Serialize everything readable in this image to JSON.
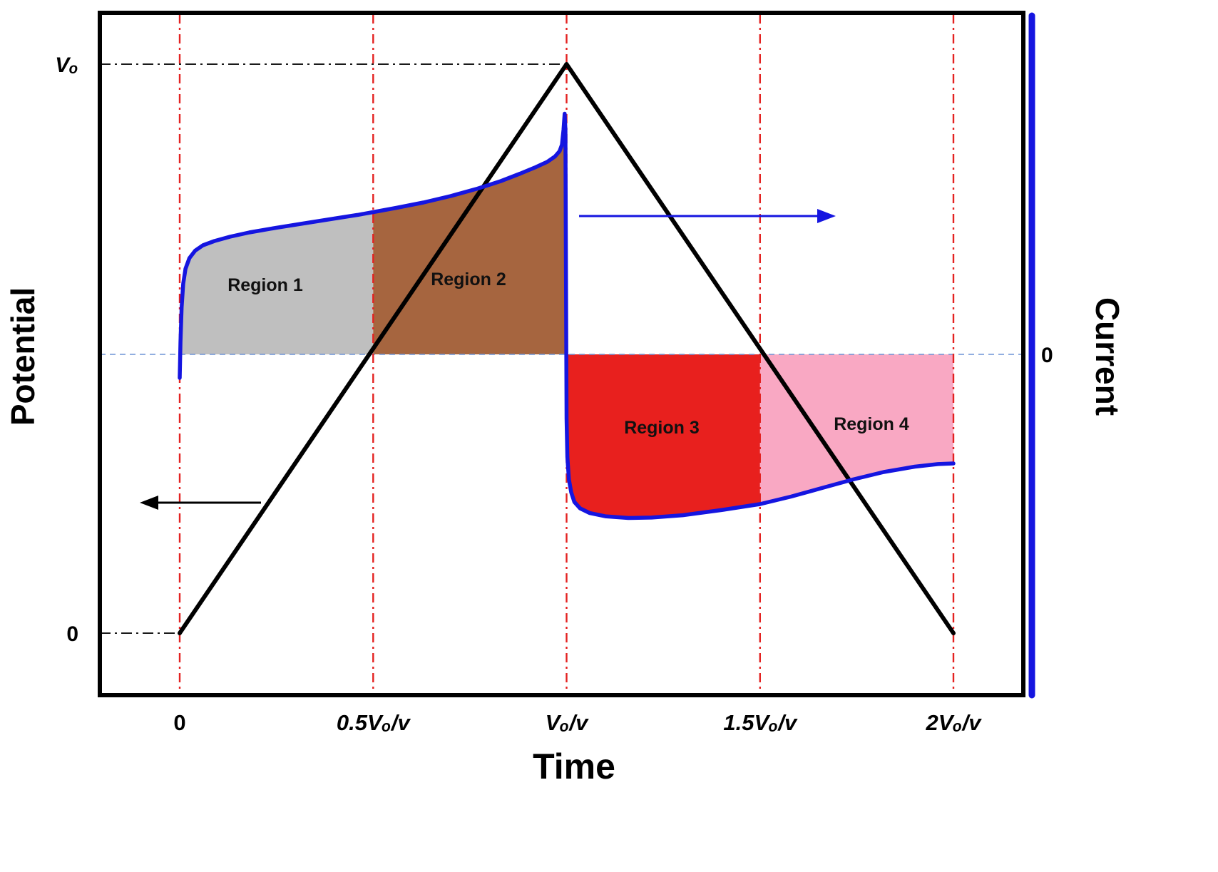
{
  "chart_data": {
    "type": "line",
    "xlabel": "Time",
    "ylabel_left": "Potential",
    "ylabel_right": "Current",
    "x_ticks": [
      {
        "t": 0,
        "label": "0"
      },
      {
        "t": 0.5,
        "label": "0.5Vₒ/v"
      },
      {
        "t": 1,
        "label": "Vₒ/v"
      },
      {
        "t": 1.5,
        "label": "1.5Vₒ/v"
      },
      {
        "t": 2,
        "label": "2Vₒ/v"
      }
    ],
    "left_axis": {
      "range": [
        0,
        1
      ],
      "ticks": [
        {
          "v": 1,
          "label": "Vₒ"
        },
        {
          "v": 0,
          "label": "0"
        }
      ]
    },
    "right_axis": {
      "ticks": [
        {
          "i": 0,
          "label": "0"
        }
      ]
    },
    "colors": {
      "potential": "#000000",
      "current": "#1515e0",
      "grid": "#e32221",
      "zero_line": "#6d93d6",
      "region1": "#bfbfbf",
      "region2": "#a6653f",
      "region3": "#e8201e",
      "region4": "#f9a8c3"
    },
    "series": [
      {
        "name": "Potential",
        "axis": "left",
        "points": [
          [
            0,
            0
          ],
          [
            1,
            1
          ],
          [
            2,
            0
          ]
        ]
      },
      {
        "name": "Current",
        "axis": "right",
        "points": [
          [
            0,
            -0.11
          ],
          [
            0.002,
            0.06
          ],
          [
            0.005,
            0.22
          ],
          [
            0.009,
            0.33
          ],
          [
            0.015,
            0.4
          ],
          [
            0.025,
            0.45
          ],
          [
            0.04,
            0.485
          ],
          [
            0.06,
            0.51
          ],
          [
            0.09,
            0.53
          ],
          [
            0.13,
            0.55
          ],
          [
            0.18,
            0.57
          ],
          [
            0.25,
            0.592
          ],
          [
            0.32,
            0.612
          ],
          [
            0.4,
            0.635
          ],
          [
            0.46,
            0.652
          ],
          [
            0.5,
            0.665
          ],
          [
            0.56,
            0.685
          ],
          [
            0.63,
            0.71
          ],
          [
            0.7,
            0.74
          ],
          [
            0.77,
            0.775
          ],
          [
            0.83,
            0.81
          ],
          [
            0.88,
            0.845
          ],
          [
            0.92,
            0.875
          ],
          [
            0.95,
            0.9
          ],
          [
            0.97,
            0.925
          ],
          [
            0.982,
            0.95
          ],
          [
            0.988,
            0.98
          ],
          [
            0.992,
            1.05
          ],
          [
            0.995,
            1.125
          ],
          [
            0.997,
            1.05
          ],
          [
            0.998,
            0.6
          ],
          [
            0.999,
            0.1
          ],
          [
            1.0,
            -0.3
          ],
          [
            1.002,
            -0.48
          ],
          [
            1.006,
            -0.585
          ],
          [
            1.012,
            -0.645
          ],
          [
            1.02,
            -0.69
          ],
          [
            1.035,
            -0.72
          ],
          [
            1.06,
            -0.742
          ],
          [
            1.1,
            -0.757
          ],
          [
            1.16,
            -0.765
          ],
          [
            1.22,
            -0.763
          ],
          [
            1.3,
            -0.752
          ],
          [
            1.4,
            -0.728
          ],
          [
            1.5,
            -0.7
          ],
          [
            1.58,
            -0.665
          ],
          [
            1.66,
            -0.625
          ],
          [
            1.74,
            -0.585
          ],
          [
            1.82,
            -0.55
          ],
          [
            1.9,
            -0.525
          ],
          [
            1.96,
            -0.513
          ],
          [
            2.0,
            -0.51
          ]
        ]
      }
    ],
    "regions": [
      {
        "label": "Region 1",
        "t0": 0,
        "t1": 0.5,
        "sign": 1,
        "color_key": "region1"
      },
      {
        "label": "Region 2",
        "t0": 0.5,
        "t1": 1,
        "sign": 1,
        "color_key": "region2"
      },
      {
        "label": "Region 3",
        "t0": 1,
        "t1": 1.5,
        "sign": -1,
        "color_key": "region3"
      },
      {
        "label": "Region 4",
        "t0": 1.5,
        "t1": 2,
        "sign": -1,
        "color_key": "region4"
      }
    ],
    "guides": [
      {
        "v": 1,
        "t_end": 1
      },
      {
        "v": 0,
        "t_end": 0
      }
    ],
    "legend": "none",
    "grid_on": true
  }
}
